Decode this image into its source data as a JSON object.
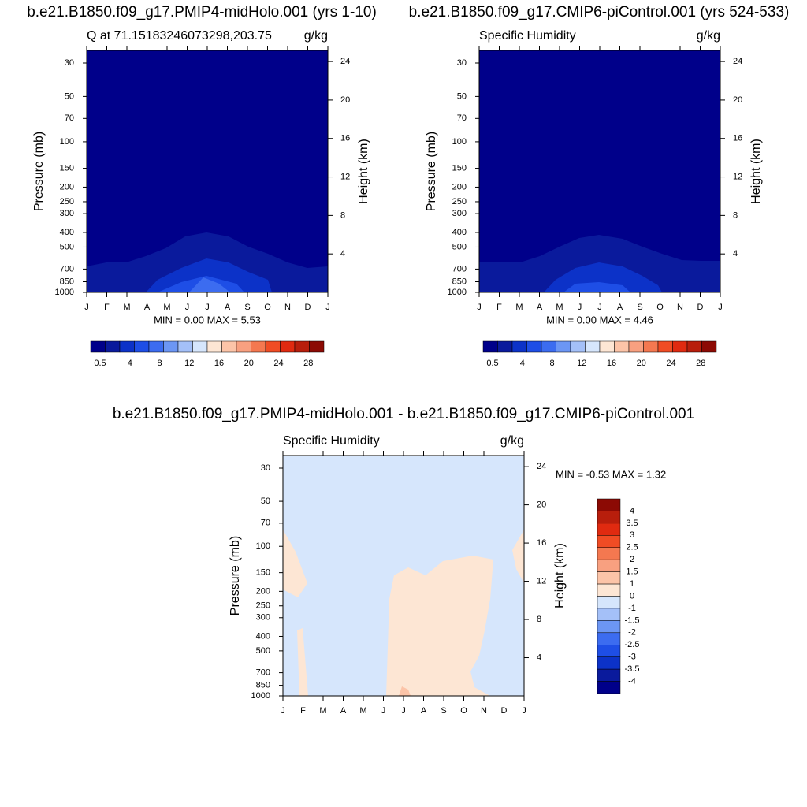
{
  "chart_data": {
    "type": "contour",
    "title": "b.e21.B1850.f09_g17.PMIP4-midHolo.001 - b.e21.B1850.f09_g17.CMIP6-piControl.001",
    "colorbar_colors": [
      "#00008a",
      "#0a1a9c",
      "#0c32c8",
      "#1e4ee6",
      "#3c6cf0",
      "#6c96f4",
      "#a4c0f8",
      "#d6e6fc",
      "#fde6d4",
      "#fcc4a8",
      "#f8a080",
      "#f47850",
      "#f04c24",
      "#e02a10",
      "#b81e0c",
      "#8c0a04"
    ],
    "panels": [
      {
        "title": "b.e21.B1850.f09_g17.PMIP4-midHolo.001 (yrs 1-10)",
        "left_label": "Q at 71.15183246073298,203.75",
        "right_label": "g/kg",
        "y_label": "Pressure (mb)",
        "y2_label": "Height (km)",
        "months": [
          "J",
          "F",
          "M",
          "A",
          "M",
          "J",
          "J",
          "A",
          "S",
          "O",
          "N",
          "D",
          "J"
        ],
        "yticks": [
          30,
          50,
          70,
          100,
          150,
          200,
          250,
          300,
          400,
          500,
          700,
          850,
          1000
        ],
        "y2ticks": [
          4,
          8,
          12,
          16,
          20,
          24
        ],
        "stats": "MIN =   0.00 MAX =   5.53",
        "colorbar_labels": [
          0.5,
          4,
          8,
          12,
          16,
          20,
          24,
          28
        ]
      },
      {
        "title": "b.e21.B1850.f09_g17.CMIP6-piControl.001 (yrs 524-533)",
        "left_label": "Specific Humidity",
        "right_label": "g/kg",
        "y_label": "Pressure (mb)",
        "y2_label": "Height (km)",
        "months": [
          "J",
          "F",
          "M",
          "A",
          "M",
          "J",
          "J",
          "A",
          "S",
          "O",
          "N",
          "D",
          "J"
        ],
        "yticks": [
          30,
          50,
          70,
          100,
          150,
          200,
          250,
          300,
          400,
          500,
          700,
          850,
          1000
        ],
        "y2ticks": [
          4,
          8,
          12,
          16,
          20,
          24
        ],
        "stats": "MIN =   0.00 MAX =   4.46",
        "colorbar_labels": [
          0.5,
          4,
          8,
          12,
          16,
          20,
          24,
          28
        ]
      },
      {
        "left_label": "Specific Humidity",
        "right_label": "g/kg",
        "y_label": "Pressure (mb)",
        "y2_label": "Height (km)",
        "months": [
          "J",
          "F",
          "M",
          "A",
          "M",
          "J",
          "J",
          "A",
          "S",
          "O",
          "N",
          "D",
          "J"
        ],
        "yticks": [
          30,
          50,
          70,
          100,
          150,
          200,
          250,
          300,
          400,
          500,
          700,
          850,
          1000
        ],
        "y2ticks": [
          4,
          8,
          12,
          16,
          20,
          24
        ],
        "stats": "MIN =  -0.53 MAX =   1.32",
        "colorbar_labels": [
          4,
          3.5,
          3,
          2.5,
          2,
          1.5,
          1,
          0,
          -1,
          -1.5,
          -2,
          -2.5,
          -3,
          -3.5,
          -4
        ]
      }
    ]
  }
}
